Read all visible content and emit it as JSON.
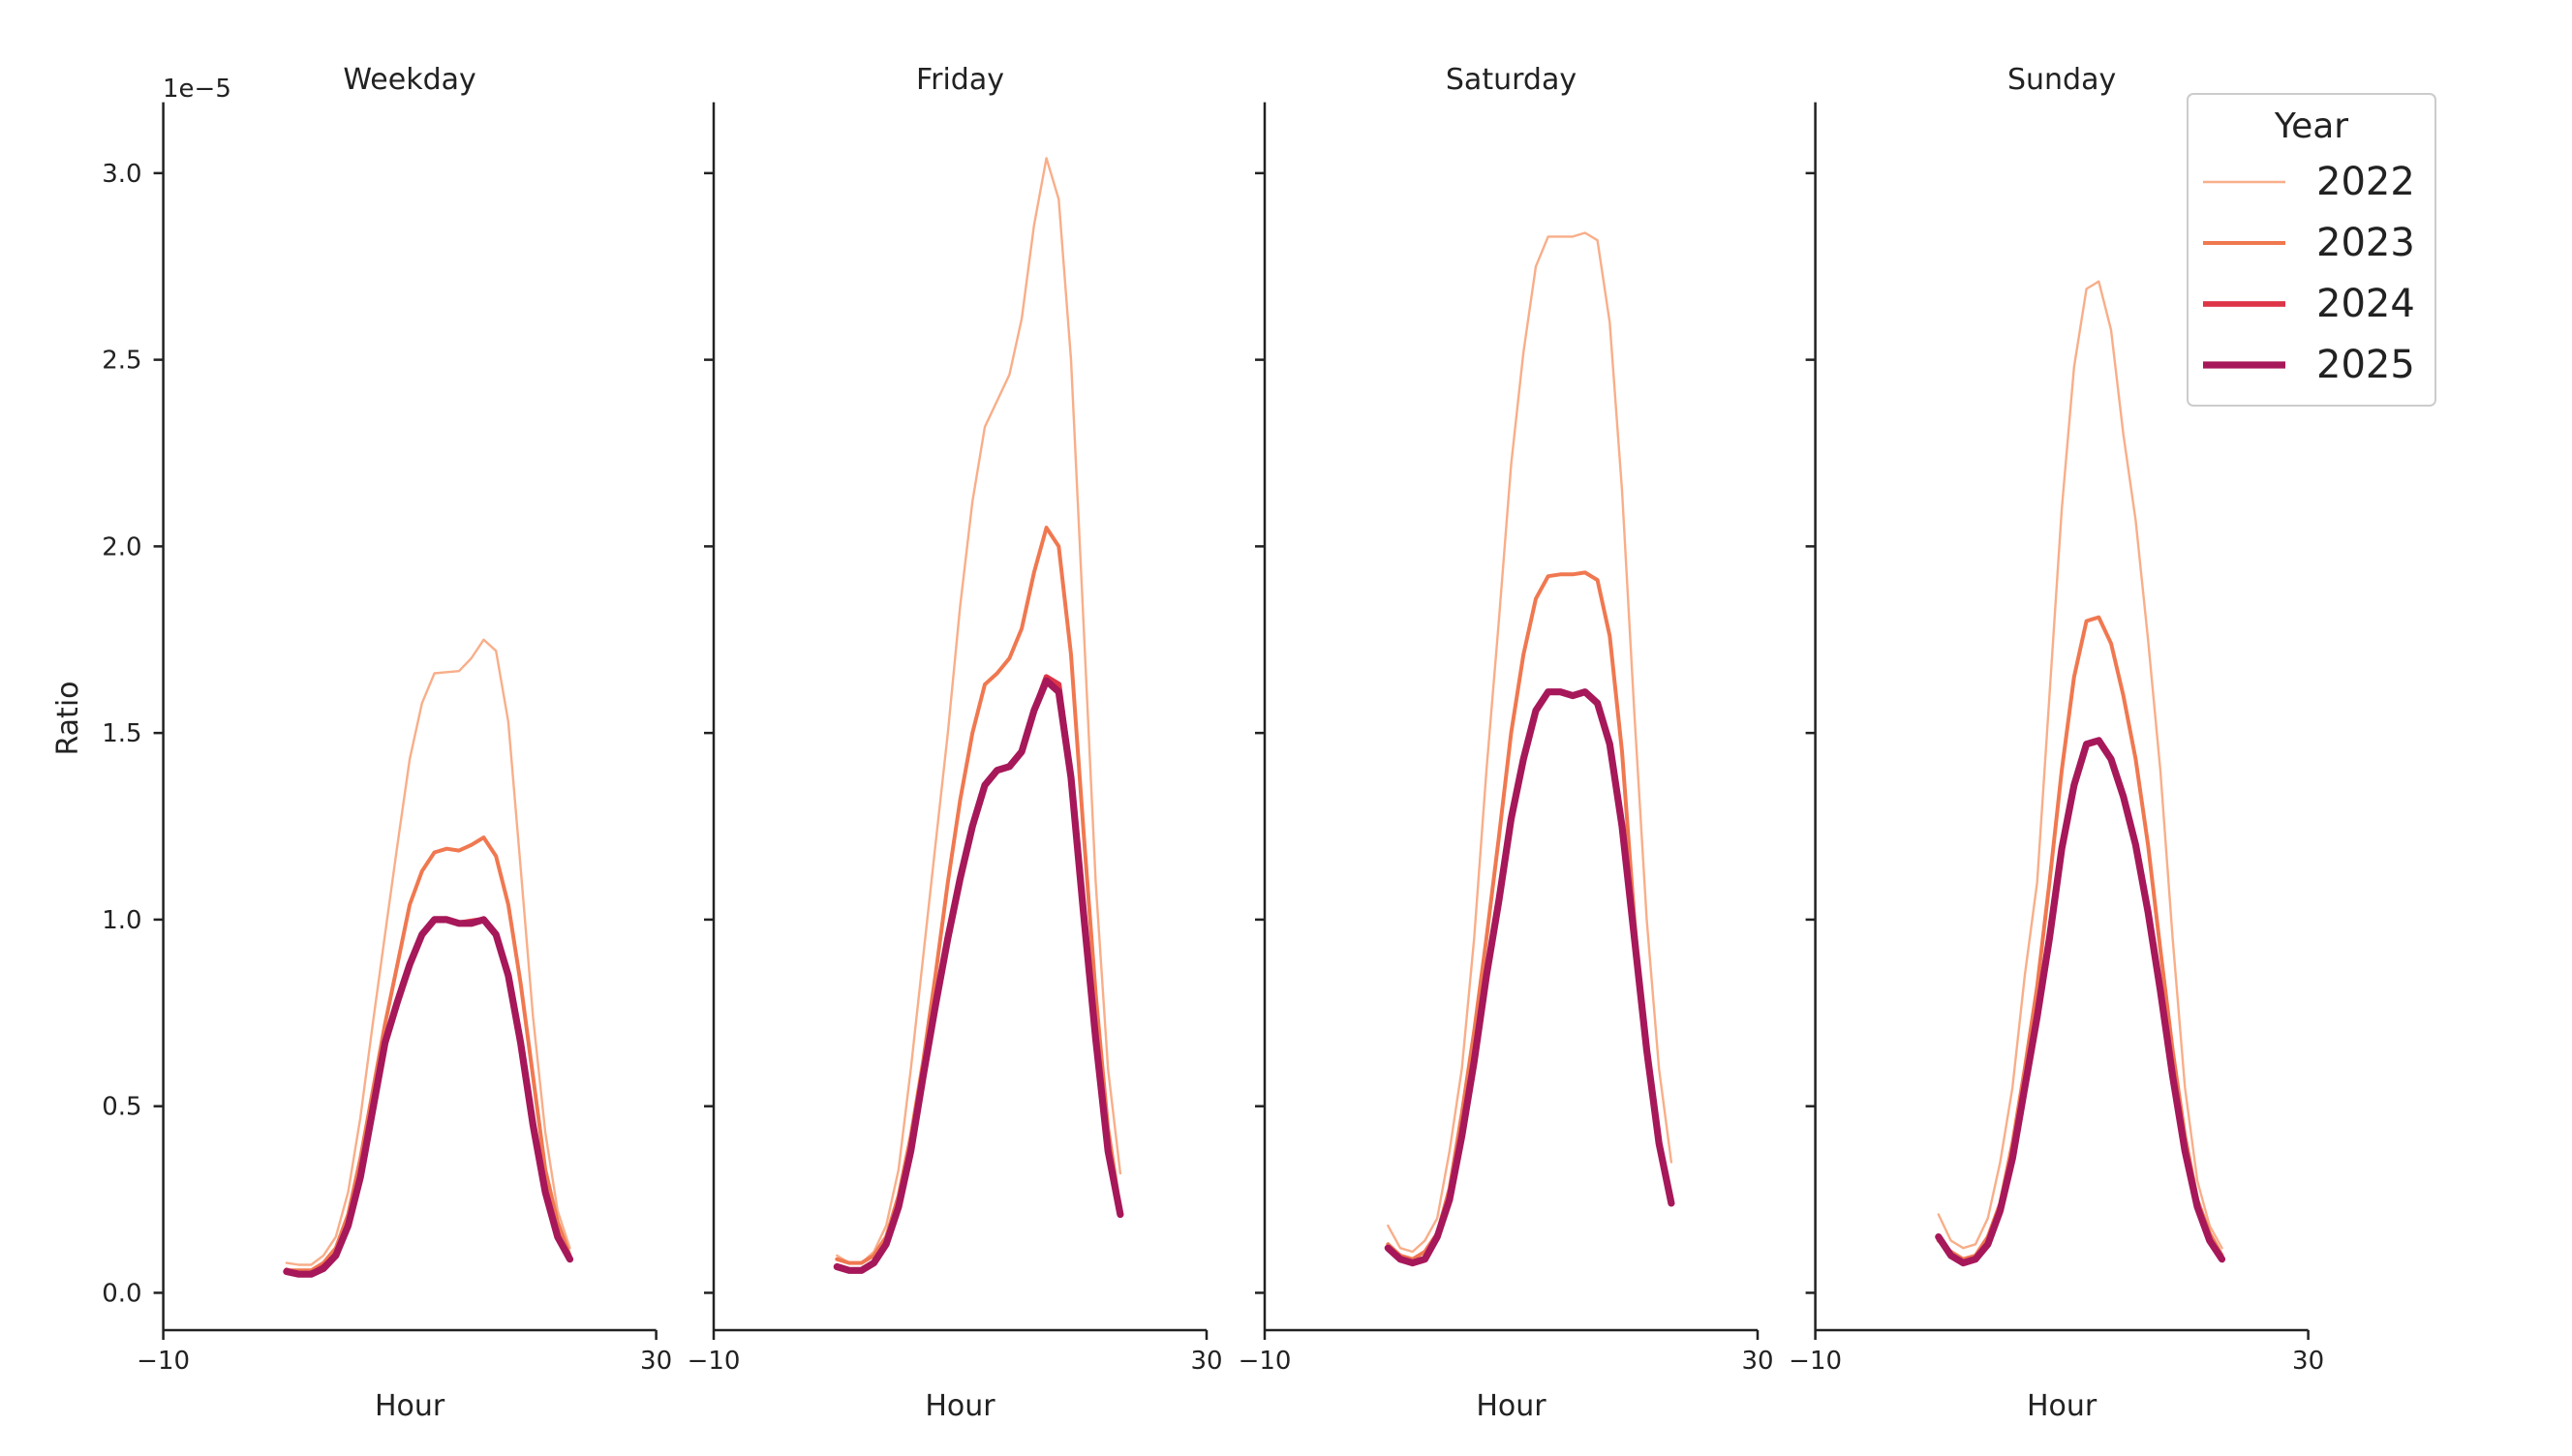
{
  "chart_data": {
    "type": "line",
    "ylabel": "Ratio",
    "y_scale_label": "1e−5",
    "xlabel": "Hour",
    "xlim": [
      -10,
      30
    ],
    "ylim": [
      -0.1,
      3.19
    ],
    "x_ticks": [
      -10,
      30
    ],
    "y_ticks": [
      "0.0",
      "0.5",
      "1.0",
      "1.5",
      "2.0",
      "2.5",
      "3.0"
    ],
    "grid": false,
    "legend": {
      "title": "Year",
      "placement": "top-right"
    },
    "x": [
      0,
      1,
      2,
      3,
      4,
      5,
      6,
      7,
      8,
      9,
      10,
      11,
      12,
      13,
      14,
      15,
      16,
      17,
      18,
      19,
      20,
      21,
      22,
      23
    ],
    "series_styles": [
      {
        "name": "2022",
        "color": "#f8ae89"
      },
      {
        "name": "2023",
        "color": "#f07850"
      },
      {
        "name": "2024",
        "color": "#de3448"
      },
      {
        "name": "2025",
        "color": "#a6185a"
      }
    ],
    "panels": [
      {
        "title": "Weekday",
        "series": [
          {
            "name": "2022",
            "values": [
              0.08,
              0.075,
              0.075,
              0.1,
              0.15,
              0.27,
              0.47,
              0.72,
              0.96,
              1.2,
              1.43,
              1.58,
              1.66,
              1.663,
              1.666,
              1.7,
              1.75,
              1.72,
              1.53,
              1.14,
              0.74,
              0.43,
              0.22,
              0.12
            ]
          },
          {
            "name": "2023",
            "values": [
              0.06,
              0.06,
              0.06,
              0.08,
              0.12,
              0.21,
              0.36,
              0.54,
              0.72,
              0.88,
              1.04,
              1.13,
              1.18,
              1.19,
              1.185,
              1.2,
              1.22,
              1.17,
              1.04,
              0.83,
              0.58,
              0.33,
              0.19,
              0.1
            ]
          },
          {
            "name": "2024",
            "values": [
              0.06,
              0.05,
              0.05,
              0.07,
              0.1,
              0.18,
              0.31,
              0.49,
              0.67,
              0.78,
              0.88,
              0.96,
              1.0,
              1.0,
              0.99,
              0.995,
              1.0,
              0.96,
              0.85,
              0.67,
              0.45,
              0.27,
              0.15,
              0.09
            ]
          },
          {
            "name": "2025",
            "values": [
              0.057,
              0.05,
              0.05,
              0.065,
              0.1,
              0.18,
              0.31,
              0.49,
              0.67,
              0.78,
              0.88,
              0.96,
              1.0,
              1.0,
              0.99,
              0.99,
              1.0,
              0.96,
              0.85,
              0.67,
              0.45,
              0.27,
              0.15,
              0.09
            ]
          }
        ]
      },
      {
        "title": "Friday",
        "series": [
          {
            "name": "2022",
            "values": [
              0.1,
              0.08,
              0.08,
              0.11,
              0.18,
              0.33,
              0.6,
              0.9,
              1.2,
              1.5,
              1.84,
              2.12,
              2.32,
              2.39,
              2.46,
              2.61,
              2.86,
              3.04,
              2.93,
              2.5,
              1.8,
              1.1,
              0.6,
              0.32
            ]
          },
          {
            "name": "2023",
            "values": [
              0.09,
              0.08,
              0.08,
              0.1,
              0.15,
              0.26,
              0.42,
              0.62,
              0.85,
              1.1,
              1.32,
              1.5,
              1.63,
              1.66,
              1.7,
              1.78,
              1.93,
              2.05,
              2.0,
              1.71,
              1.24,
              0.8,
              0.44,
              0.22
            ]
          },
          {
            "name": "2024",
            "values": [
              0.07,
              0.06,
              0.06,
              0.08,
              0.13,
              0.23,
              0.38,
              0.58,
              0.77,
              0.95,
              1.11,
              1.25,
              1.36,
              1.4,
              1.41,
              1.45,
              1.56,
              1.65,
              1.63,
              1.38,
              1.02,
              0.68,
              0.38,
              0.21
            ]
          },
          {
            "name": "2025",
            "values": [
              0.07,
              0.06,
              0.06,
              0.08,
              0.13,
              0.23,
              0.38,
              0.58,
              0.77,
              0.95,
              1.11,
              1.25,
              1.36,
              1.4,
              1.41,
              1.45,
              1.56,
              1.64,
              1.61,
              1.38,
              1.02,
              0.68,
              0.38,
              0.21
            ]
          }
        ]
      },
      {
        "title": "Saturday",
        "series": [
          {
            "name": "2022",
            "values": [
              0.18,
              0.12,
              0.11,
              0.14,
              0.2,
              0.38,
              0.6,
              0.95,
              1.4,
              1.8,
              2.22,
              2.52,
              2.75,
              2.83,
              2.83,
              2.83,
              2.84,
              2.82,
              2.6,
              2.15,
              1.55,
              1.0,
              0.6,
              0.35
            ]
          },
          {
            "name": "2023",
            "values": [
              0.13,
              0.1,
              0.09,
              0.11,
              0.16,
              0.28,
              0.48,
              0.7,
              0.95,
              1.22,
              1.5,
              1.71,
              1.86,
              1.92,
              1.925,
              1.925,
              1.93,
              1.91,
              1.76,
              1.45,
              1.0,
              0.62,
              0.4,
              0.25
            ]
          },
          {
            "name": "2024",
            "values": [
              0.12,
              0.09,
              0.08,
              0.09,
              0.15,
              0.25,
              0.42,
              0.62,
              0.85,
              1.05,
              1.27,
              1.43,
              1.56,
              1.61,
              1.61,
              1.6,
              1.61,
              1.58,
              1.47,
              1.25,
              0.95,
              0.65,
              0.4,
              0.24
            ]
          },
          {
            "name": "2025",
            "values": [
              0.12,
              0.09,
              0.08,
              0.09,
              0.15,
              0.25,
              0.42,
              0.62,
              0.85,
              1.05,
              1.27,
              1.43,
              1.56,
              1.61,
              1.61,
              1.6,
              1.61,
              1.58,
              1.47,
              1.25,
              0.95,
              0.65,
              0.4,
              0.24
            ]
          }
        ]
      },
      {
        "title": "Sunday",
        "series": [
          {
            "name": "2022",
            "values": [
              0.21,
              0.14,
              0.12,
              0.13,
              0.2,
              0.35,
              0.55,
              0.85,
              1.1,
              1.6,
              2.1,
              2.48,
              2.69,
              2.71,
              2.58,
              2.3,
              2.07,
              1.75,
              1.4,
              0.95,
              0.55,
              0.3,
              0.18,
              0.12
            ]
          },
          {
            "name": "2023",
            "values": [
              0.14,
              0.11,
              0.09,
              0.1,
              0.15,
              0.24,
              0.4,
              0.6,
              0.82,
              1.1,
              1.4,
              1.65,
              1.8,
              1.81,
              1.74,
              1.6,
              1.43,
              1.2,
              0.92,
              0.65,
              0.42,
              0.25,
              0.16,
              0.1
            ]
          },
          {
            "name": "2024",
            "values": [
              0.15,
              0.1,
              0.08,
              0.09,
              0.13,
              0.22,
              0.36,
              0.55,
              0.74,
              0.95,
              1.19,
              1.36,
              1.47,
              1.48,
              1.43,
              1.33,
              1.2,
              1.02,
              0.81,
              0.58,
              0.38,
              0.23,
              0.14,
              0.09
            ]
          },
          {
            "name": "2025",
            "values": [
              0.15,
              0.1,
              0.08,
              0.09,
              0.13,
              0.22,
              0.36,
              0.55,
              0.74,
              0.95,
              1.19,
              1.36,
              1.47,
              1.48,
              1.43,
              1.33,
              1.2,
              1.02,
              0.81,
              0.58,
              0.38,
              0.23,
              0.14,
              0.09
            ]
          }
        ]
      }
    ]
  }
}
